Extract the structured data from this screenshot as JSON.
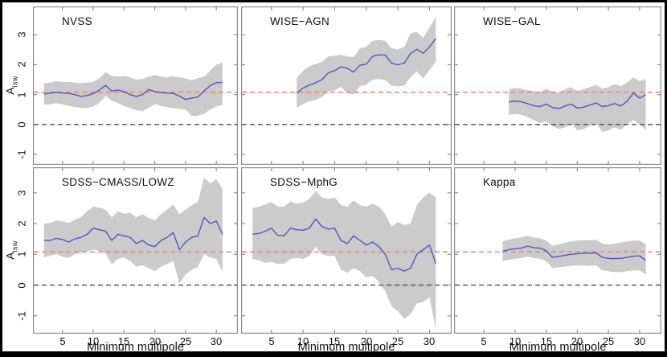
{
  "figure": {
    "background": "#ffffff",
    "border_color": "#000000"
  },
  "axes": {
    "xlabel": "Minimum multipole",
    "ylabel_main": "A",
    "ylabel_sub": "isw",
    "xticks": [
      5,
      10,
      15,
      20,
      25,
      30
    ],
    "yticks": [
      3,
      2,
      1,
      0,
      -1
    ],
    "xlim": [
      0.2,
      33.5
    ],
    "ylim_top_row": [
      -1.35,
      3.95
    ],
    "ylim_bottom_row": [
      -1.58,
      3.83
    ],
    "red_dashed_y": 1.08,
    "black_dashed_y": 0,
    "grid": false,
    "legend": false
  },
  "colors": {
    "band": "#cbcbcb",
    "line": "#5156c5",
    "red_dash": "#ee8173",
    "black_dash": "#4d4d4d",
    "frame": "#8f8f8f",
    "text": "#111111"
  },
  "chart_data": [
    {
      "type": "line",
      "title": "NVSS",
      "x": [
        2,
        3,
        4,
        5,
        6,
        7,
        8,
        9,
        10,
        11,
        12,
        13,
        14,
        15,
        16,
        17,
        18,
        19,
        20,
        21,
        22,
        23,
        24,
        25,
        26,
        27,
        28,
        29,
        30,
        31
      ],
      "y": [
        1.02,
        1.05,
        1.08,
        1.05,
        1.04,
        1.0,
        0.94,
        0.97,
        1.03,
        1.15,
        1.31,
        1.12,
        1.15,
        1.1,
        1.0,
        0.94,
        1.0,
        1.17,
        1.1,
        1.07,
        1.05,
        1.04,
        0.95,
        0.84,
        0.88,
        0.92,
        1.12,
        1.3,
        1.4,
        1.41
      ],
      "band_hi": [
        1.38,
        1.4,
        1.45,
        1.42,
        1.42,
        1.4,
        1.38,
        1.4,
        1.42,
        1.55,
        1.75,
        1.62,
        1.6,
        1.62,
        1.58,
        1.5,
        1.52,
        1.6,
        1.66,
        1.6,
        1.58,
        1.62,
        1.58,
        1.55,
        1.48,
        1.55,
        1.6,
        1.8,
        2.0,
        2.08
      ],
      "band_lo": [
        0.66,
        0.68,
        0.72,
        0.68,
        0.62,
        0.58,
        0.55,
        0.55,
        0.6,
        0.72,
        0.95,
        0.8,
        0.72,
        0.62,
        0.55,
        0.48,
        0.45,
        0.55,
        0.68,
        0.62,
        0.58,
        0.55,
        0.52,
        0.5,
        0.28,
        0.3,
        0.35,
        0.5,
        0.6,
        0.66
      ]
    },
    {
      "type": "line",
      "title": "WISE−AGN",
      "x": [
        9,
        10,
        11,
        12,
        13,
        14,
        15,
        16,
        17,
        18,
        19,
        20,
        21,
        22,
        23,
        24,
        25,
        26,
        27,
        28,
        29,
        30,
        31
      ],
      "y": [
        1.05,
        1.22,
        1.32,
        1.4,
        1.5,
        1.73,
        1.8,
        1.93,
        1.88,
        1.75,
        1.98,
        2.02,
        2.28,
        2.33,
        2.32,
        2.05,
        2.0,
        2.05,
        2.38,
        2.52,
        2.38,
        2.6,
        2.88
      ],
      "band_hi": [
        1.55,
        1.8,
        1.95,
        2.02,
        2.1,
        2.28,
        2.3,
        2.33,
        2.28,
        2.25,
        2.55,
        2.6,
        2.8,
        2.83,
        2.8,
        2.55,
        2.52,
        2.6,
        3.05,
        3.1,
        2.9,
        3.25,
        3.6
      ],
      "band_lo": [
        0.55,
        0.68,
        0.78,
        0.82,
        0.92,
        1.1,
        1.15,
        1.25,
        1.05,
        1.0,
        1.28,
        1.33,
        1.5,
        1.52,
        1.48,
        1.3,
        1.28,
        1.3,
        1.58,
        1.78,
        1.55,
        1.82,
        2.1
      ]
    },
    {
      "type": "line",
      "title": "WISE−GAL",
      "x": [
        9,
        10,
        11,
        12,
        13,
        14,
        15,
        16,
        17,
        18,
        19,
        20,
        21,
        22,
        23,
        24,
        25,
        26,
        27,
        28,
        29,
        30,
        31
      ],
      "y": [
        0.75,
        0.78,
        0.76,
        0.7,
        0.63,
        0.6,
        0.68,
        0.57,
        0.53,
        0.62,
        0.68,
        0.55,
        0.58,
        0.65,
        0.72,
        0.6,
        0.63,
        0.7,
        0.62,
        0.78,
        1.05,
        0.88,
        1.0
      ],
      "band_hi": [
        1.18,
        1.22,
        1.2,
        1.15,
        1.12,
        1.08,
        1.2,
        1.1,
        1.05,
        1.18,
        1.25,
        1.12,
        1.18,
        1.25,
        1.32,
        1.2,
        1.25,
        1.35,
        1.28,
        1.4,
        1.58,
        1.45,
        1.52
      ],
      "band_lo": [
        0.32,
        0.35,
        0.32,
        0.25,
        0.15,
        0.05,
        0.1,
        -0.05,
        -0.15,
        -0.1,
        0.05,
        -0.2,
        -0.15,
        -0.05,
        0.05,
        -0.25,
        -0.2,
        -0.1,
        -0.18,
        0.02,
        0.15,
        0.0,
        -0.18
      ]
    },
    {
      "type": "line",
      "title": "SDSS−CMASS/LOWZ",
      "x": [
        2,
        3,
        4,
        5,
        6,
        7,
        8,
        9,
        10,
        11,
        12,
        13,
        14,
        15,
        16,
        17,
        18,
        19,
        20,
        21,
        22,
        23,
        24,
        25,
        26,
        27,
        28,
        29,
        30,
        31
      ],
      "y": [
        1.45,
        1.45,
        1.52,
        1.48,
        1.4,
        1.5,
        1.55,
        1.65,
        1.85,
        1.8,
        1.75,
        1.45,
        1.65,
        1.6,
        1.55,
        1.35,
        1.45,
        1.3,
        1.25,
        1.45,
        1.55,
        1.7,
        1.15,
        1.4,
        1.55,
        1.6,
        2.2,
        2.0,
        2.08,
        1.65
      ],
      "band_hi": [
        2.0,
        2.02,
        2.1,
        2.08,
        2.02,
        2.12,
        2.2,
        2.4,
        2.55,
        2.52,
        2.45,
        2.2,
        2.4,
        2.32,
        2.35,
        2.2,
        2.3,
        2.18,
        2.1,
        2.3,
        2.45,
        2.62,
        2.3,
        2.45,
        2.6,
        2.7,
        3.5,
        3.3,
        3.45,
        3.1
      ],
      "band_lo": [
        0.9,
        0.95,
        1.0,
        0.92,
        0.88,
        1.0,
        1.05,
        1.1,
        1.15,
        1.12,
        1.02,
        0.68,
        0.85,
        0.9,
        0.78,
        0.6,
        0.65,
        0.55,
        0.45,
        0.6,
        0.68,
        0.78,
        0.05,
        0.35,
        0.5,
        0.58,
        1.0,
        0.9,
        0.85,
        0.42
      ]
    },
    {
      "type": "line",
      "title": "SDSS−MphG",
      "x": [
        2,
        3,
        4,
        5,
        6,
        7,
        8,
        9,
        10,
        11,
        12,
        13,
        14,
        15,
        16,
        17,
        18,
        19,
        20,
        21,
        22,
        23,
        24,
        25,
        26,
        27,
        28,
        29,
        30,
        31
      ],
      "y": [
        1.65,
        1.68,
        1.75,
        1.85,
        1.62,
        1.6,
        1.85,
        1.8,
        1.78,
        1.85,
        2.15,
        1.9,
        1.82,
        1.85,
        1.45,
        1.35,
        1.6,
        1.45,
        1.3,
        1.4,
        1.25,
        1.0,
        0.5,
        0.55,
        0.45,
        0.55,
        1.0,
        1.15,
        1.3,
        0.7
      ],
      "band_hi": [
        2.5,
        2.55,
        2.62,
        2.7,
        2.55,
        2.55,
        2.72,
        2.65,
        2.68,
        2.8,
        3.05,
        2.85,
        2.8,
        2.85,
        2.6,
        2.55,
        2.75,
        2.6,
        2.55,
        2.65,
        2.55,
        2.3,
        1.9,
        2.05,
        1.95,
        2.0,
        2.6,
        2.85,
        3.0,
        2.85
      ],
      "band_lo": [
        0.85,
        0.8,
        0.72,
        0.75,
        0.68,
        0.7,
        0.85,
        0.88,
        0.85,
        0.95,
        1.25,
        1.0,
        0.95,
        0.95,
        0.5,
        0.4,
        0.55,
        0.45,
        0.25,
        0.3,
        0.1,
        -0.2,
        -0.7,
        -0.85,
        -1.1,
        -0.95,
        -0.6,
        -0.55,
        -0.4,
        -1.45
      ]
    },
    {
      "type": "line",
      "title": "Kappa",
      "x": [
        8,
        9,
        10,
        11,
        12,
        13,
        14,
        15,
        16,
        17,
        18,
        19,
        20,
        21,
        22,
        23,
        24,
        25,
        26,
        27,
        28,
        29,
        30,
        31
      ],
      "y": [
        1.1,
        1.15,
        1.18,
        1.2,
        1.27,
        1.21,
        1.2,
        1.12,
        0.9,
        0.93,
        0.97,
        1.0,
        1.02,
        1.04,
        1.03,
        1.05,
        0.9,
        0.87,
        0.86,
        0.87,
        0.9,
        0.94,
        0.95,
        0.8
      ],
      "band_hi": [
        1.42,
        1.48,
        1.52,
        1.55,
        1.6,
        1.55,
        1.52,
        1.45,
        1.28,
        1.32,
        1.38,
        1.42,
        1.45,
        1.46,
        1.45,
        1.48,
        1.35,
        1.32,
        1.35,
        1.38,
        1.42,
        1.45,
        1.45,
        1.32
      ],
      "band_lo": [
        0.78,
        0.82,
        0.85,
        0.88,
        0.92,
        0.88,
        0.85,
        0.78,
        0.55,
        0.58,
        0.6,
        0.62,
        0.63,
        0.64,
        0.62,
        0.65,
        0.48,
        0.45,
        0.42,
        0.42,
        0.45,
        0.48,
        0.48,
        0.35
      ]
    }
  ]
}
